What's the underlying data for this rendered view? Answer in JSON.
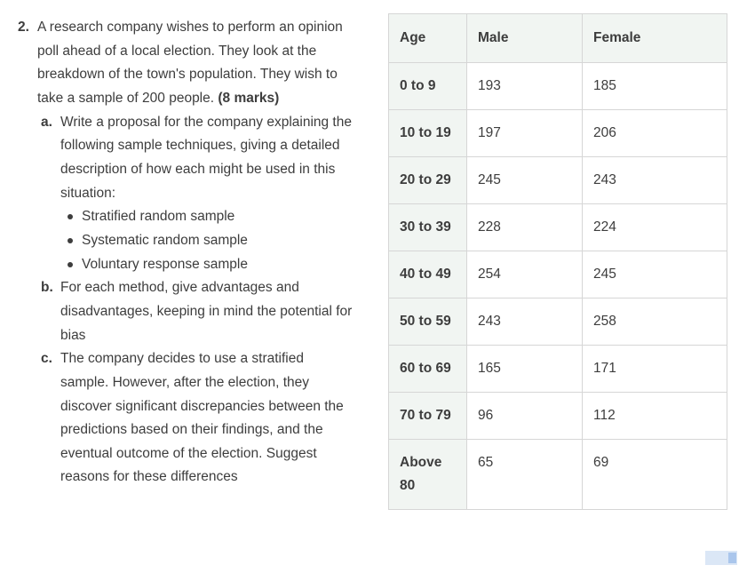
{
  "question": {
    "number": "2.",
    "intro": "A research company wishes to perform an opinion poll ahead of a local election. They look at the breakdown of the town's population. They wish to take a sample of 200 people. ",
    "marks": "(8 marks)",
    "parts": [
      {
        "label": "a.",
        "text": "Write a proposal for the company explaining the following sample techniques, giving a detailed description of how each might be used in this situation:",
        "bullets": [
          "Stratified random sample",
          "Systematic random sample",
          "Voluntary response sample"
        ]
      },
      {
        "label": "b.",
        "text": "For each method, give advantages and disadvantages, keeping in mind the potential for bias"
      },
      {
        "label": "c.",
        "text": "The company decides to use a stratified sample. However, after the election, they discover significant discrepancies between the predictions based on their findings, and the eventual outcome of the election. Suggest reasons for these differences"
      }
    ]
  },
  "table": {
    "headers": [
      "Age",
      "Male",
      "Female"
    ],
    "rows": [
      {
        "age": "0 to 9",
        "male": "193",
        "female": "185"
      },
      {
        "age": "10 to 19",
        "male": "197",
        "female": "206"
      },
      {
        "age": "20 to 29",
        "male": "245",
        "female": "243"
      },
      {
        "age": "30 to 39",
        "male": "228",
        "female": "224"
      },
      {
        "age": "40 to 49",
        "male": "254",
        "female": "245"
      },
      {
        "age": "50 to 59",
        "male": "243",
        "female": "258"
      },
      {
        "age": "60 to 69",
        "male": "165",
        "female": "171"
      },
      {
        "age": "70 to 79",
        "male": "96",
        "female": "112"
      },
      {
        "age": "Above 80",
        "male": "65",
        "female": "69"
      }
    ]
  },
  "colors": {
    "text": "#3d3d3d",
    "table_header_bg": "#f1f5f2",
    "table_border": "#d6d6d6",
    "scrollbar_track": "#dbe7f6",
    "scrollbar_thumb": "#aac6ec"
  }
}
